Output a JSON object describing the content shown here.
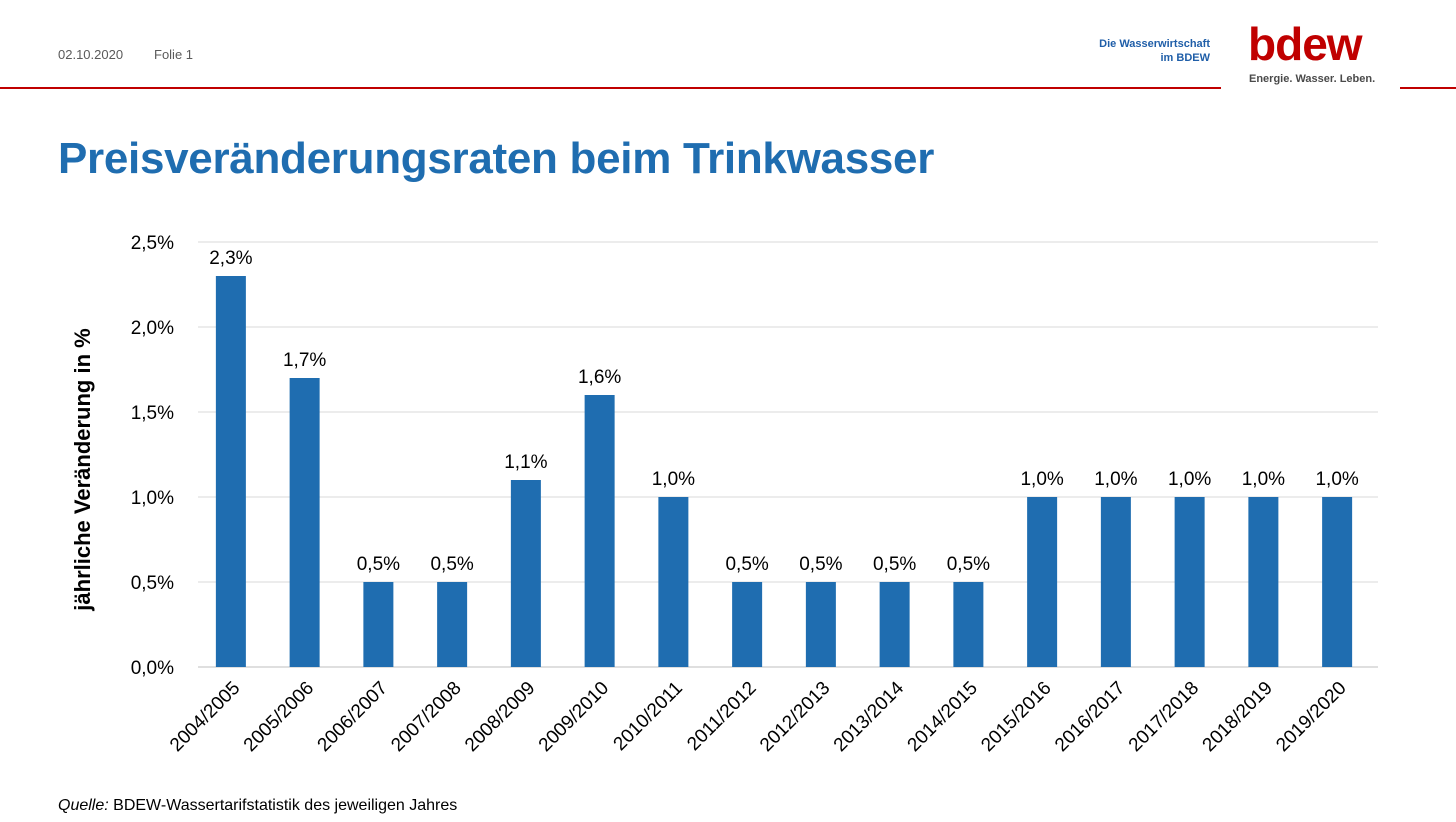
{
  "header": {
    "date": "02.10.2020",
    "slide": "Folie 1",
    "tagline_line1": "Die Wasserwirtschaft",
    "tagline_line2": "im BDEW",
    "logo_text": "bdew",
    "logo_claim": "Energie. Wasser. Leben."
  },
  "title": "Preisveränderungsraten beim Trinkwasser",
  "source": {
    "label": "Quelle:",
    "text": "BDEW-Wassertarifstatistik des jeweiligen Jahres"
  },
  "colors": {
    "bar": "#1f6db0",
    "title": "#1f6db0",
    "accent_red": "#c00000"
  },
  "chart_data": {
    "type": "bar",
    "title": "",
    "xlabel": "",
    "ylabel": "jährliche Veränderung in %",
    "ylim": [
      0,
      2.5
    ],
    "yticks": [
      0,
      0.5,
      1.0,
      1.5,
      2.0,
      2.5
    ],
    "ytick_labels": [
      "0,0%",
      "0,5%",
      "1,0%",
      "1,5%",
      "2,0%",
      "2,5%"
    ],
    "grid": true,
    "categories": [
      "2004/2005",
      "2005/2006",
      "2006/2007",
      "2007/2008",
      "2008/2009",
      "2009/2010",
      "2010/2011",
      "2011/2012",
      "2012/2013",
      "2013/2014",
      "2014/2015",
      "2015/2016",
      "2016/2017",
      "2017/2018",
      "2018/2019",
      "2019/2020"
    ],
    "values": [
      2.3,
      1.7,
      0.5,
      0.5,
      1.1,
      1.6,
      1.0,
      0.5,
      0.5,
      0.5,
      0.5,
      1.0,
      1.0,
      1.0,
      1.0,
      1.0
    ],
    "value_labels": [
      "2,3%",
      "1,7%",
      "0,5%",
      "0,5%",
      "1,1%",
      "1,6%",
      "1,0%",
      "0,5%",
      "0,5%",
      "0,5%",
      "0,5%",
      "1,0%",
      "1,0%",
      "1,0%",
      "1,0%",
      "1,0%"
    ]
  }
}
